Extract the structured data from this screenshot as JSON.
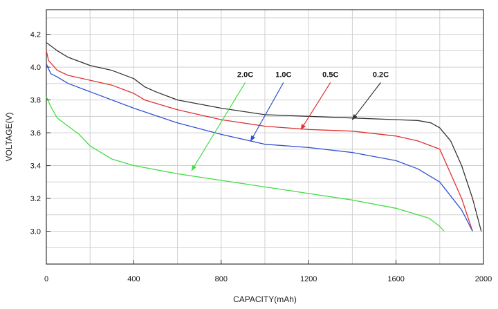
{
  "chart_data": {
    "type": "line",
    "title": "",
    "xlabel": "CAPACITY(mAh)",
    "ylabel": "VOLTAGE(V)",
    "xlim": [
      0,
      2000
    ],
    "ylim": [
      2.8,
      4.35
    ],
    "x_ticks": [
      0,
      400,
      800,
      1200,
      1600,
      2000
    ],
    "x_tick_labels": [
      "0",
      "400",
      "800",
      "1200",
      "1600",
      "2000"
    ],
    "y_ticks": [
      3.0,
      3.2,
      3.4,
      3.6,
      3.8,
      4.0,
      4.2
    ],
    "y_tick_labels": [
      "3.0",
      "3.2",
      "3.4",
      "3.6",
      "3.8",
      "4.0",
      "4.2"
    ],
    "grid": true,
    "legend": "none",
    "series": [
      {
        "name": "0.2C",
        "color": "#333333",
        "points": [
          [
            0,
            4.15
          ],
          [
            50,
            4.1
          ],
          [
            100,
            4.06
          ],
          [
            200,
            4.01
          ],
          [
            300,
            3.98
          ],
          [
            400,
            3.93
          ],
          [
            450,
            3.88
          ],
          [
            500,
            3.85
          ],
          [
            600,
            3.8
          ],
          [
            800,
            3.75
          ],
          [
            1000,
            3.71
          ],
          [
            1200,
            3.7
          ],
          [
            1400,
            3.69
          ],
          [
            1600,
            3.68
          ],
          [
            1700,
            3.675
          ],
          [
            1760,
            3.66
          ],
          [
            1800,
            3.63
          ],
          [
            1850,
            3.55
          ],
          [
            1900,
            3.4
          ],
          [
            1950,
            3.2
          ],
          [
            1990,
            3.0
          ]
        ],
        "label_at": [
          1530,
          3.94
        ],
        "arrow_to": [
          1400,
          3.68
        ]
      },
      {
        "name": "0.5C",
        "color": "#e03030",
        "points": [
          [
            0,
            4.1
          ],
          [
            10,
            4.04
          ],
          [
            50,
            3.98
          ],
          [
            100,
            3.95
          ],
          [
            200,
            3.92
          ],
          [
            300,
            3.89
          ],
          [
            400,
            3.84
          ],
          [
            450,
            3.8
          ],
          [
            600,
            3.74
          ],
          [
            800,
            3.68
          ],
          [
            1000,
            3.64
          ],
          [
            1200,
            3.62
          ],
          [
            1400,
            3.61
          ],
          [
            1600,
            3.58
          ],
          [
            1700,
            3.55
          ],
          [
            1800,
            3.5
          ],
          [
            1850,
            3.35
          ],
          [
            1900,
            3.2
          ],
          [
            1950,
            3.0
          ]
        ],
        "label_at": [
          1300,
          3.94
        ],
        "arrow_to": [
          1165,
          3.62
        ]
      },
      {
        "name": "1.0C",
        "color": "#3050d0",
        "points": [
          [
            0,
            4.02
          ],
          [
            20,
            3.96
          ],
          [
            50,
            3.94
          ],
          [
            100,
            3.9
          ],
          [
            200,
            3.85
          ],
          [
            400,
            3.75
          ],
          [
            600,
            3.66
          ],
          [
            800,
            3.59
          ],
          [
            1000,
            3.53
          ],
          [
            1200,
            3.51
          ],
          [
            1400,
            3.48
          ],
          [
            1600,
            3.43
          ],
          [
            1700,
            3.38
          ],
          [
            1800,
            3.3
          ],
          [
            1900,
            3.13
          ],
          [
            1950,
            3.0
          ]
        ],
        "label_at": [
          1085,
          3.94
        ],
        "arrow_to": [
          935,
          3.55
        ]
      },
      {
        "name": "2.0C",
        "color": "#40dd40",
        "points": [
          [
            0,
            3.82
          ],
          [
            20,
            3.76
          ],
          [
            50,
            3.69
          ],
          [
            100,
            3.64
          ],
          [
            150,
            3.59
          ],
          [
            200,
            3.52
          ],
          [
            300,
            3.44
          ],
          [
            400,
            3.4
          ],
          [
            600,
            3.35
          ],
          [
            800,
            3.31
          ],
          [
            1000,
            3.27
          ],
          [
            1200,
            3.23
          ],
          [
            1400,
            3.19
          ],
          [
            1600,
            3.14
          ],
          [
            1700,
            3.1
          ],
          [
            1750,
            3.08
          ],
          [
            1800,
            3.03
          ],
          [
            1820,
            3.0
          ]
        ],
        "label_at": [
          910,
          3.94
        ],
        "arrow_to": [
          665,
          3.37
        ]
      }
    ]
  }
}
